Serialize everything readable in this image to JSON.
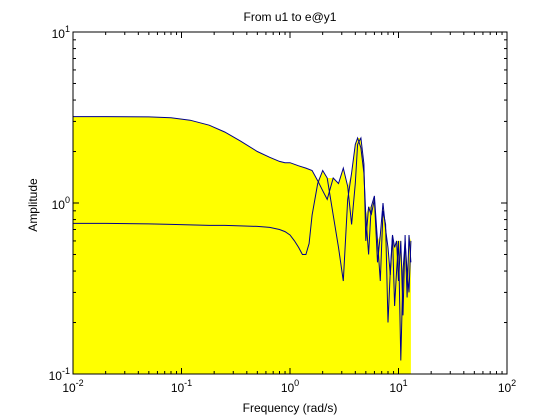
{
  "chart_data": {
    "type": "area",
    "title": "From u1 to e@y1",
    "xlabel": "Frequency (rad/s)",
    "ylabel": "Amplitude",
    "x_scale": "log",
    "y_scale": "log",
    "xlim": [
      0.01,
      100
    ],
    "ylim": [
      0.1,
      10
    ],
    "x_ticks": [
      {
        "mantissa": "10",
        "exponent": "-2",
        "value": 0.01
      },
      {
        "mantissa": "10",
        "exponent": "-1",
        "value": 0.1
      },
      {
        "mantissa": "10",
        "exponent": "0",
        "value": 1
      },
      {
        "mantissa": "10",
        "exponent": "1",
        "value": 10
      },
      {
        "mantissa": "10",
        "exponent": "2",
        "value": 100
      }
    ],
    "y_ticks": [
      {
        "mantissa": "10",
        "exponent": "-1",
        "value": 0.1
      },
      {
        "mantissa": "10",
        "exponent": "0",
        "value": 1
      },
      {
        "mantissa": "10",
        "exponent": "1",
        "value": 10
      }
    ],
    "grid": false,
    "colors": {
      "fill": "#ffff00",
      "line": "#00008b",
      "axes": "#000000",
      "background": "#ffffff"
    },
    "series": [
      {
        "x": [
          0.01,
          0.02,
          0.05,
          0.08,
          0.12,
          0.18,
          0.25,
          0.35,
          0.5,
          0.65,
          0.8,
          0.9,
          1.0,
          1.2,
          1.4,
          1.6,
          1.8,
          2.0,
          2.2,
          2.5,
          2.8,
          3.1,
          3.4,
          3.7,
          4.0,
          4.2,
          4.5,
          4.8,
          5.0,
          5.3,
          5.6,
          6.0,
          6.4,
          6.8,
          7.2,
          7.6,
          8.0,
          8.4,
          8.8,
          9.2,
          9.6,
          10.0,
          10.5,
          11.0,
          11.5,
          12.0,
          12.5,
          13.0
        ],
        "y": [
          3.2,
          3.2,
          3.19,
          3.15,
          3.05,
          2.85,
          2.6,
          2.3,
          2.0,
          1.85,
          1.75,
          1.72,
          1.72,
          1.65,
          1.6,
          1.55,
          1.35,
          1.18,
          1.05,
          1.4,
          1.3,
          1.6,
          1.25,
          0.75,
          1.3,
          2.2,
          2.4,
          1.7,
          0.6,
          0.95,
          0.85,
          1.05,
          0.45,
          0.65,
          1.0,
          0.7,
          0.55,
          0.38,
          0.65,
          0.55,
          0.6,
          0.35,
          0.6,
          0.22,
          0.65,
          0.28,
          0.65,
          0.45
        ]
      },
      {
        "x": [
          0.01,
          0.02,
          0.05,
          0.08,
          0.12,
          0.18,
          0.25,
          0.35,
          0.5,
          0.65,
          0.8,
          0.9,
          1.0,
          1.1,
          1.2,
          1.3,
          1.4,
          1.5,
          1.6,
          1.8,
          2.0,
          2.2,
          2.5,
          2.8,
          3.1,
          3.4,
          3.7,
          4.0,
          4.2,
          4.5,
          4.8,
          5.0,
          5.3,
          5.6,
          6.0,
          6.4,
          6.8,
          7.2,
          7.6,
          8.0,
          8.4,
          8.8,
          9.2,
          9.6,
          10.0,
          10.5,
          11.0,
          11.5,
          12.0,
          12.5,
          13.0
        ],
        "y": [
          0.76,
          0.76,
          0.755,
          0.75,
          0.745,
          0.74,
          0.74,
          0.735,
          0.73,
          0.72,
          0.7,
          0.68,
          0.65,
          0.6,
          0.55,
          0.5,
          0.5,
          0.58,
          0.85,
          1.3,
          1.55,
          1.4,
          0.85,
          0.55,
          0.35,
          1.05,
          1.5,
          2.2,
          2.4,
          2.1,
          1.5,
          0.85,
          0.5,
          0.95,
          1.1,
          0.6,
          0.35,
          0.9,
          0.75,
          0.2,
          0.4,
          0.65,
          0.25,
          0.4,
          0.6,
          0.12,
          0.4,
          0.6,
          0.4,
          0.3,
          0.6
        ]
      }
    ]
  }
}
